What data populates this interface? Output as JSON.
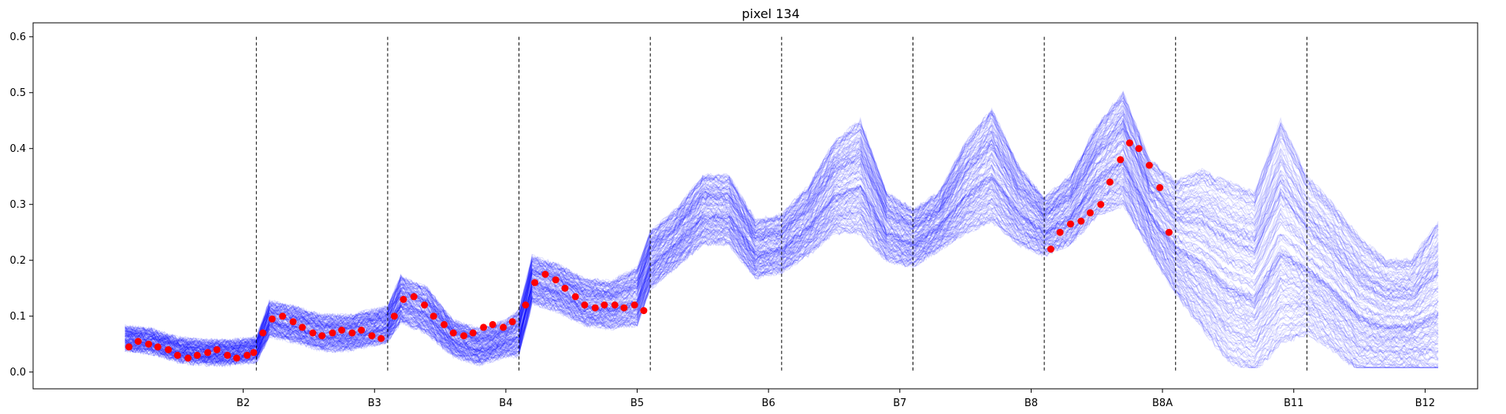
{
  "chart_data": {
    "type": "line",
    "title": "pixel 134",
    "xlabel": "",
    "ylabel": "",
    "ylim": [
      -0.03,
      0.625
    ],
    "xlim": [
      -0.7,
      10.3
    ],
    "categories": [
      "B2",
      "B3",
      "B4",
      "B5",
      "B6",
      "B7",
      "B8",
      "B8A",
      "B11",
      "B12"
    ],
    "category_positions": [
      0.9,
      1.9,
      2.9,
      3.9,
      4.9,
      5.9,
      6.9,
      7.9,
      8.9,
      9.9
    ],
    "yticks": [
      "0.0",
      "0.1",
      "0.2",
      "0.3",
      "0.4",
      "0.5",
      "0.6"
    ],
    "ytick_values": [
      0.0,
      0.1,
      0.2,
      0.3,
      0.4,
      0.5,
      0.6
    ],
    "band_separators": [
      1.0,
      2.0,
      3.0,
      4.0,
      5.0,
      6.0,
      7.0,
      8.0,
      9.0
    ],
    "separator_ymax": 0.6,
    "grid": false,
    "series": [
      {
        "kind": "ensemble_lines",
        "color": "#0000ff",
        "center_x": [
          0.0,
          0.2,
          0.4,
          0.6,
          0.8,
          1.0,
          1.1,
          1.3,
          1.5,
          1.7,
          1.9,
          2.0,
          2.1,
          2.3,
          2.5,
          2.7,
          2.9,
          3.0,
          3.1,
          3.3,
          3.5,
          3.7,
          3.9,
          4.0,
          4.2,
          4.4,
          4.6,
          4.8,
          5.0,
          5.2,
          5.4,
          5.6,
          5.8,
          6.0,
          6.2,
          6.4,
          6.6,
          6.8,
          7.0,
          7.2,
          7.4,
          7.6,
          7.8,
          8.0,
          8.2,
          8.4,
          8.6,
          8.8,
          9.0,
          9.2,
          9.4,
          9.6,
          9.8,
          10.0
        ],
        "center_y": [
          0.06,
          0.055,
          0.04,
          0.035,
          0.035,
          0.04,
          0.095,
          0.085,
          0.07,
          0.07,
          0.08,
          0.085,
          0.13,
          0.11,
          0.06,
          0.045,
          0.06,
          0.07,
          0.165,
          0.15,
          0.125,
          0.12,
          0.135,
          0.2,
          0.24,
          0.29,
          0.29,
          0.22,
          0.23,
          0.27,
          0.33,
          0.35,
          0.26,
          0.24,
          0.27,
          0.33,
          0.37,
          0.3,
          0.26,
          0.29,
          0.36,
          0.4,
          0.3,
          0.24,
          0.22,
          0.18,
          0.16,
          0.25,
          0.21,
          0.17,
          0.12,
          0.1,
          0.1,
          0.13
        ],
        "spread": [
          0.02,
          0.02,
          0.02,
          0.02,
          0.02,
          0.02,
          0.03,
          0.03,
          0.03,
          0.03,
          0.03,
          0.03,
          0.04,
          0.04,
          0.03,
          0.03,
          0.03,
          0.04,
          0.04,
          0.04,
          0.04,
          0.04,
          0.05,
          0.05,
          0.05,
          0.06,
          0.06,
          0.05,
          0.05,
          0.06,
          0.08,
          0.1,
          0.06,
          0.05,
          0.05,
          0.08,
          0.1,
          0.07,
          0.05,
          0.06,
          0.08,
          0.1,
          0.08,
          0.1,
          0.14,
          0.16,
          0.16,
          0.2,
          0.14,
          0.13,
          0.12,
          0.1,
          0.1,
          0.14
        ],
        "n_lines": 160
      },
      {
        "kind": "observed_points",
        "color": "#ff0000",
        "x": [
          0.03,
          0.1,
          0.18,
          0.25,
          0.33,
          0.4,
          0.48,
          0.55,
          0.63,
          0.7,
          0.78,
          0.85,
          0.93,
          0.98,
          1.05,
          1.12,
          1.2,
          1.28,
          1.35,
          1.43,
          1.5,
          1.58,
          1.65,
          1.73,
          1.8,
          1.88,
          1.95,
          2.05,
          2.12,
          2.2,
          2.28,
          2.35,
          2.43,
          2.5,
          2.58,
          2.65,
          2.73,
          2.8,
          2.88,
          2.95,
          3.05,
          3.12,
          3.2,
          3.28,
          3.35,
          3.43,
          3.5,
          3.58,
          3.65,
          3.73,
          3.8,
          3.88,
          3.95,
          7.05,
          7.12,
          7.2,
          7.28,
          7.35,
          7.43,
          7.5,
          7.58,
          7.65,
          7.72,
          7.8,
          7.88,
          7.95
        ],
        "y": [
          0.045,
          0.055,
          0.05,
          0.045,
          0.04,
          0.03,
          0.025,
          0.03,
          0.035,
          0.04,
          0.03,
          0.025,
          0.03,
          0.035,
          0.07,
          0.095,
          0.1,
          0.09,
          0.08,
          0.07,
          0.065,
          0.07,
          0.075,
          0.07,
          0.075,
          0.065,
          0.06,
          0.1,
          0.13,
          0.135,
          0.12,
          0.1,
          0.085,
          0.07,
          0.065,
          0.07,
          0.08,
          0.085,
          0.08,
          0.09,
          0.12,
          0.16,
          0.175,
          0.165,
          0.15,
          0.135,
          0.12,
          0.115,
          0.12,
          0.12,
          0.115,
          0.12,
          0.11,
          0.22,
          0.25,
          0.265,
          0.27,
          0.285,
          0.3,
          0.34,
          0.38,
          0.41,
          0.4,
          0.37,
          0.33,
          0.25
        ]
      }
    ]
  }
}
